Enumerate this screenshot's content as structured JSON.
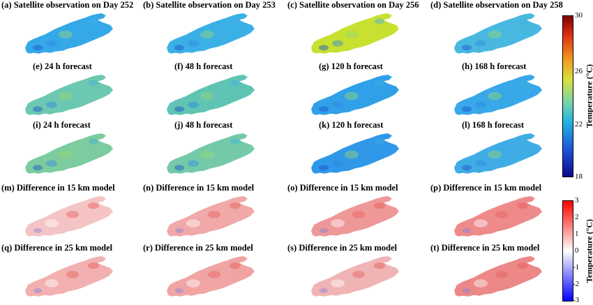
{
  "titles": [
    "(a) Satellite observation on Day 252",
    "(b) Satellite observation on Day 253",
    "(c) Satellite observation on Day 256",
    "(d) Satellite observation on Day 258",
    "(e) 24 h forecast",
    "(f) 48 h forecast",
    "(g) 120 h forecast",
    "(h) 168 h forecast",
    "(i) 24 h forecast",
    "(j) 48 h forecast",
    "(k) 120 h forecast",
    "(l) 168 h forecast",
    "(m) Difference in 15 km model",
    "(n) Difference in 15 km model",
    "(o) Difference in 15 km model",
    "(p) Difference in 15 km model",
    "(q) Difference in 25 km model",
    "(r) Difference in 25 km model",
    "(s) Difference in 25 km model",
    "(t) Difference in 25 km model"
  ],
  "temperature_colorbar": {
    "label": "Temperature (°C)",
    "ticks": [
      "30",
      "26",
      "22",
      "18"
    ],
    "range": [
      18,
      30
    ]
  },
  "difference_colorbar": {
    "label": "Temperature (°C)",
    "ticks": [
      "3",
      "2",
      "1",
      "0",
      "-1",
      "-2",
      "-3"
    ],
    "range": [
      -3,
      3
    ]
  },
  "colors": {
    "temperature_scale": [
      "#0a0a8c",
      "#1e50d8",
      "#21b4e0",
      "#6ed3b0",
      "#d8e040",
      "#f0a020",
      "#e03010",
      "#800000"
    ],
    "difference_scale": [
      "#0000ff",
      "#ffffff",
      "#ff0000"
    ],
    "obs_fill": [
      "#35a8e8",
      "#3bb0e6",
      "#c8e030",
      "#48b8e0"
    ],
    "f15_fill": [
      "#6cc8b0",
      "#60c4b4",
      "#30a0e8",
      "#38a8e8"
    ],
    "f25_fill": [
      "#7ccca0",
      "#74caa8",
      "#3098e8",
      "#40ace6"
    ],
    "diff15_fill": [
      "#f4c4c4",
      "#f0a8a8",
      "#ee9898",
      "#ee8a8a"
    ],
    "diff25_fill": [
      "#f2b0b0",
      "#f0a4a4",
      "#f0b4b4",
      "#ec8888"
    ]
  }
}
